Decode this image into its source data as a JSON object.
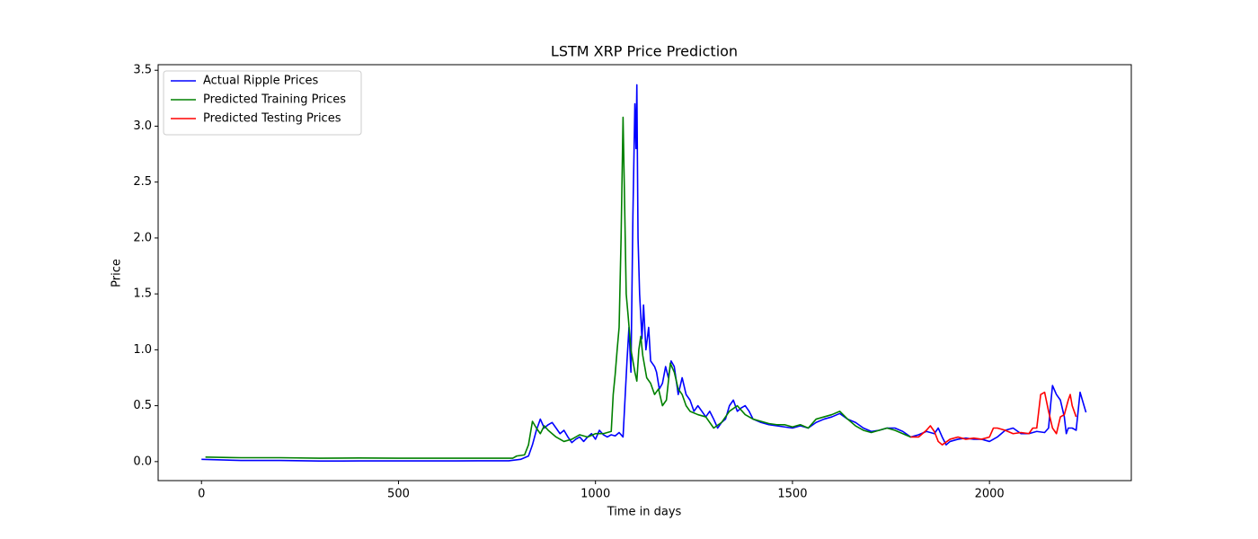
{
  "chart_data": {
    "type": "line",
    "title": "LSTM XRP Price Prediction",
    "x_label": "Time in days",
    "y_label": "Price",
    "xlim": [
      -110,
      2360
    ],
    "ylim": [
      -0.17,
      3.55
    ],
    "xticks": [
      0,
      500,
      1000,
      1500,
      2000
    ],
    "yticks": [
      {
        "value": 0,
        "label": "0.0"
      },
      0.5,
      {
        "value": 1,
        "label": "1.0"
      },
      1.5,
      {
        "value": 2,
        "label": "2.0"
      },
      2.5,
      {
        "value": 3,
        "label": "3.0"
      },
      3.5
    ],
    "legend": "upper left",
    "grid": false,
    "series": [
      {
        "name": "Actual Ripple Prices",
        "color": "#0000ff",
        "x": [
          0,
          100,
          200,
          300,
          400,
          500,
          600,
          700,
          780,
          810,
          830,
          840,
          850,
          860,
          870,
          880,
          890,
          900,
          910,
          920,
          930,
          940,
          950,
          960,
          970,
          980,
          990,
          1000,
          1010,
          1020,
          1030,
          1040,
          1050,
          1060,
          1070,
          1080,
          1085,
          1090,
          1095,
          1100,
          1103,
          1105,
          1108,
          1112,
          1118,
          1122,
          1128,
          1135,
          1140,
          1150,
          1155,
          1162,
          1170,
          1178,
          1185,
          1192,
          1200,
          1210,
          1220,
          1230,
          1240,
          1250,
          1260,
          1270,
          1280,
          1290,
          1300,
          1310,
          1320,
          1330,
          1340,
          1350,
          1360,
          1370,
          1380,
          1390,
          1400,
          1420,
          1440,
          1460,
          1480,
          1500,
          1520,
          1540,
          1560,
          1580,
          1600,
          1620,
          1640,
          1660,
          1680,
          1700,
          1720,
          1740,
          1760,
          1780,
          1800,
          1820,
          1840,
          1860,
          1870,
          1880,
          1890,
          1900,
          1920,
          1940,
          1960,
          1980,
          2000,
          2020,
          2040,
          2060,
          2080,
          2100,
          2120,
          2140,
          2150,
          2155,
          2160,
          2170,
          2180,
          2190,
          2195,
          2200,
          2210,
          2220,
          2230,
          2240,
          2245
        ],
        "values": [
          0.02,
          0.01,
          0.01,
          0.005,
          0.006,
          0.006,
          0.006,
          0.007,
          0.007,
          0.02,
          0.05,
          0.15,
          0.28,
          0.38,
          0.3,
          0.33,
          0.35,
          0.3,
          0.25,
          0.28,
          0.22,
          0.17,
          0.2,
          0.22,
          0.18,
          0.22,
          0.25,
          0.2,
          0.28,
          0.24,
          0.22,
          0.24,
          0.23,
          0.26,
          0.22,
          0.9,
          1.2,
          0.8,
          2.2,
          3.2,
          2.8,
          3.37,
          2.0,
          1.5,
          1.1,
          1.4,
          1.0,
          1.2,
          0.9,
          0.85,
          0.8,
          0.65,
          0.7,
          0.85,
          0.75,
          0.9,
          0.85,
          0.6,
          0.75,
          0.6,
          0.55,
          0.45,
          0.5,
          0.45,
          0.4,
          0.45,
          0.38,
          0.3,
          0.35,
          0.38,
          0.5,
          0.55,
          0.45,
          0.48,
          0.5,
          0.45,
          0.38,
          0.35,
          0.33,
          0.32,
          0.31,
          0.3,
          0.32,
          0.3,
          0.35,
          0.38,
          0.4,
          0.43,
          0.38,
          0.35,
          0.3,
          0.27,
          0.28,
          0.3,
          0.3,
          0.27,
          0.22,
          0.24,
          0.27,
          0.25,
          0.3,
          0.22,
          0.15,
          0.18,
          0.2,
          0.21,
          0.2,
          0.2,
          0.18,
          0.22,
          0.28,
          0.3,
          0.25,
          0.25,
          0.27,
          0.26,
          0.3,
          0.5,
          0.68,
          0.6,
          0.55,
          0.4,
          0.25,
          0.3,
          0.3,
          0.28,
          0.62,
          0.5,
          0.44
        ]
      },
      {
        "name": "Predicted Training Prices",
        "color": "#008000",
        "x": [
          10,
          100,
          200,
          300,
          400,
          500,
          600,
          700,
          790,
          800,
          820,
          830,
          840,
          850,
          860,
          870,
          880,
          900,
          920,
          940,
          960,
          980,
          1000,
          1020,
          1040,
          1045,
          1050,
          1055,
          1060,
          1065,
          1070,
          1073,
          1078,
          1083,
          1090,
          1100,
          1105,
          1110,
          1115,
          1120,
          1130,
          1140,
          1150,
          1160,
          1170,
          1180,
          1190,
          1200,
          1210,
          1220,
          1230,
          1240,
          1260,
          1280,
          1300,
          1320,
          1340,
          1360,
          1380,
          1400,
          1420,
          1440,
          1460,
          1480,
          1500,
          1520,
          1540,
          1560,
          1580,
          1600,
          1620,
          1640,
          1660,
          1680,
          1700,
          1720,
          1740,
          1760,
          1780,
          1800
        ],
        "values": [
          0.04,
          0.035,
          0.035,
          0.03,
          0.032,
          0.03,
          0.03,
          0.03,
          0.03,
          0.05,
          0.06,
          0.15,
          0.36,
          0.3,
          0.25,
          0.32,
          0.28,
          0.22,
          0.18,
          0.2,
          0.24,
          0.22,
          0.25,
          0.25,
          0.27,
          0.6,
          0.78,
          1.0,
          1.2,
          2.0,
          3.08,
          2.5,
          1.5,
          1.3,
          1.0,
          0.8,
          0.72,
          1.0,
          1.12,
          0.95,
          0.75,
          0.7,
          0.6,
          0.65,
          0.5,
          0.55,
          0.88,
          0.8,
          0.65,
          0.6,
          0.5,
          0.45,
          0.42,
          0.4,
          0.3,
          0.35,
          0.45,
          0.5,
          0.42,
          0.38,
          0.36,
          0.34,
          0.33,
          0.33,
          0.31,
          0.33,
          0.3,
          0.38,
          0.4,
          0.42,
          0.45,
          0.38,
          0.32,
          0.28,
          0.26,
          0.28,
          0.3,
          0.28,
          0.25,
          0.22
        ]
      },
      {
        "name": "Predicted Testing Prices",
        "color": "#ff0000",
        "x": [
          1800,
          1820,
          1840,
          1850,
          1860,
          1870,
          1880,
          1900,
          1920,
          1940,
          1960,
          1980,
          2000,
          2010,
          2020,
          2040,
          2060,
          2080,
          2100,
          2110,
          2120,
          2130,
          2140,
          2150,
          2160,
          2170,
          2180,
          2190,
          2200,
          2205,
          2210,
          2220
        ],
        "values": [
          0.22,
          0.22,
          0.28,
          0.32,
          0.27,
          0.18,
          0.15,
          0.2,
          0.22,
          0.2,
          0.21,
          0.2,
          0.22,
          0.3,
          0.3,
          0.28,
          0.25,
          0.26,
          0.25,
          0.3,
          0.3,
          0.6,
          0.62,
          0.45,
          0.3,
          0.25,
          0.4,
          0.42,
          0.55,
          0.6,
          0.5,
          0.4
        ]
      }
    ]
  }
}
